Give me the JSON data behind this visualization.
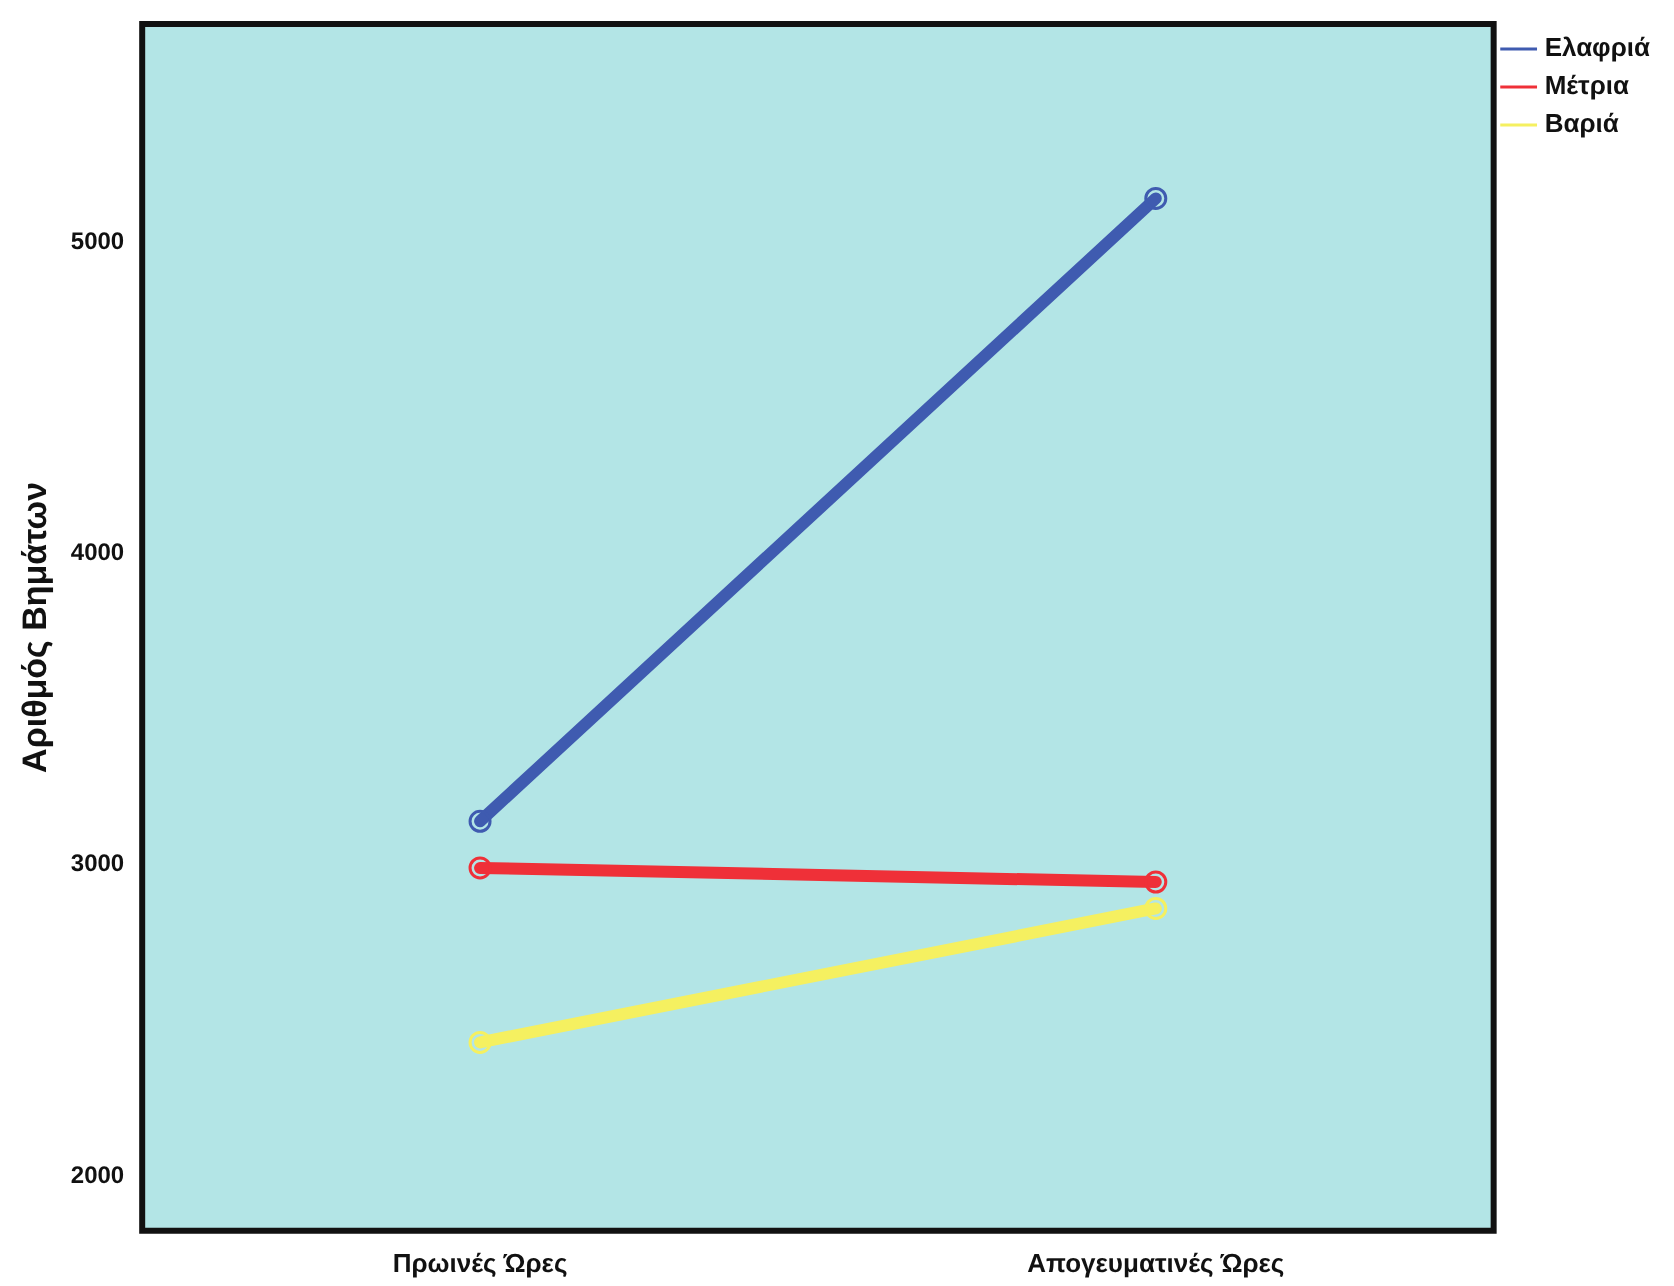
{
  "chart_data": {
    "type": "line",
    "ylabel": "Αριθμός Βημάτων",
    "categories": [
      "Πρωινές Ώρες",
      "Απογευματινές Ώρες"
    ],
    "series": [
      {
        "name": "Ελαφριά",
        "color": "#3f5bb0",
        "values": [
          3140,
          5140
        ]
      },
      {
        "name": "Μέτρια",
        "color": "#ef3038",
        "values": [
          2990,
          2945
        ]
      },
      {
        "name": "Βαριά",
        "color": "#f5f060",
        "values": [
          2430,
          2860
        ]
      }
    ],
    "ylim": [
      1825,
      5700
    ],
    "yticks": [
      2000,
      3000,
      4000,
      5000
    ],
    "grid": false,
    "legend": "top right",
    "marker": "circle",
    "line_style": "solid"
  }
}
